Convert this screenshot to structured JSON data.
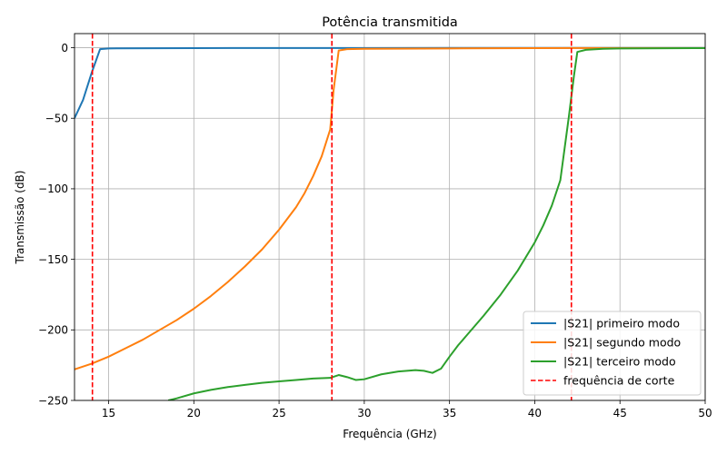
{
  "chart_data": {
    "type": "line",
    "title": "Potência transmitida",
    "xlabel": "Frequência (GHz)",
    "ylabel": "Transmissão (dB)",
    "xlim": [
      13,
      50
    ],
    "ylim": [
      -250,
      10
    ],
    "xticks": [
      15,
      20,
      25,
      30,
      35,
      40,
      45,
      50
    ],
    "yticks": [
      0,
      -50,
      -100,
      -150,
      -200,
      -250
    ],
    "grid": true,
    "legend_position": "bottom-right",
    "series": [
      {
        "name": "|S21| primeiro modo",
        "color": "#1f77b4",
        "style": "solid",
        "x": [
          13,
          13.5,
          14,
          14.5,
          15,
          20,
          25,
          30,
          35,
          40,
          45,
          50
        ],
        "y": [
          -50,
          -37,
          -18,
          -1,
          -0.5,
          -0.3,
          -0.2,
          -0.2,
          -0.1,
          -0.1,
          -0.1,
          -0.1
        ]
      },
      {
        "name": "|S21| segundo modo",
        "color": "#ff7f0e",
        "style": "solid",
        "x": [
          13,
          14,
          15,
          16,
          17,
          18,
          19,
          20,
          21,
          22,
          23,
          24,
          25,
          26,
          26.5,
          27,
          27.5,
          28,
          28.2,
          28.5,
          29,
          30,
          35,
          40,
          45,
          50
        ],
        "y": [
          -228,
          -224,
          -219,
          -213,
          -207,
          -200,
          -193,
          -185,
          -176,
          -166,
          -155,
          -143,
          -129,
          -113,
          -103,
          -91,
          -77,
          -58,
          -30,
          -2,
          -1,
          -0.8,
          -0.5,
          -0.3,
          -0.2,
          -0.2
        ],
        "y_note": ""
      },
      {
        "name": "|S21| terceiro modo",
        "color": "#2ca02c",
        "style": "solid",
        "x": [
          18.5,
          19,
          20,
          21,
          22,
          23,
          24,
          25,
          26,
          27,
          28,
          28.5,
          29,
          29.5,
          30,
          31,
          32,
          33,
          33.5,
          34,
          34.5,
          35,
          35.5,
          36,
          37,
          38,
          39,
          40,
          40.5,
          41,
          41.5,
          42,
          42.3,
          42.5,
          43,
          44,
          45,
          50
        ],
        "y": [
          -250,
          -248.5,
          -245,
          -242.5,
          -240.5,
          -239,
          -237.5,
          -236.5,
          -235.5,
          -234.5,
          -234,
          -232,
          -233.5,
          -235.5,
          -235,
          -231.5,
          -229.5,
          -228.5,
          -229,
          -230.5,
          -227.5,
          -219,
          -211,
          -204,
          -190,
          -175,
          -158,
          -138,
          -126,
          -112,
          -94,
          -49,
          -20,
          -3,
          -1.5,
          -0.8,
          -0.5,
          -0.3
        ]
      },
      {
        "name": "frequência de corte",
        "color": "#ff0000",
        "style": "dashed",
        "vlines": [
          14.05,
          28.1,
          42.15
        ]
      }
    ]
  }
}
